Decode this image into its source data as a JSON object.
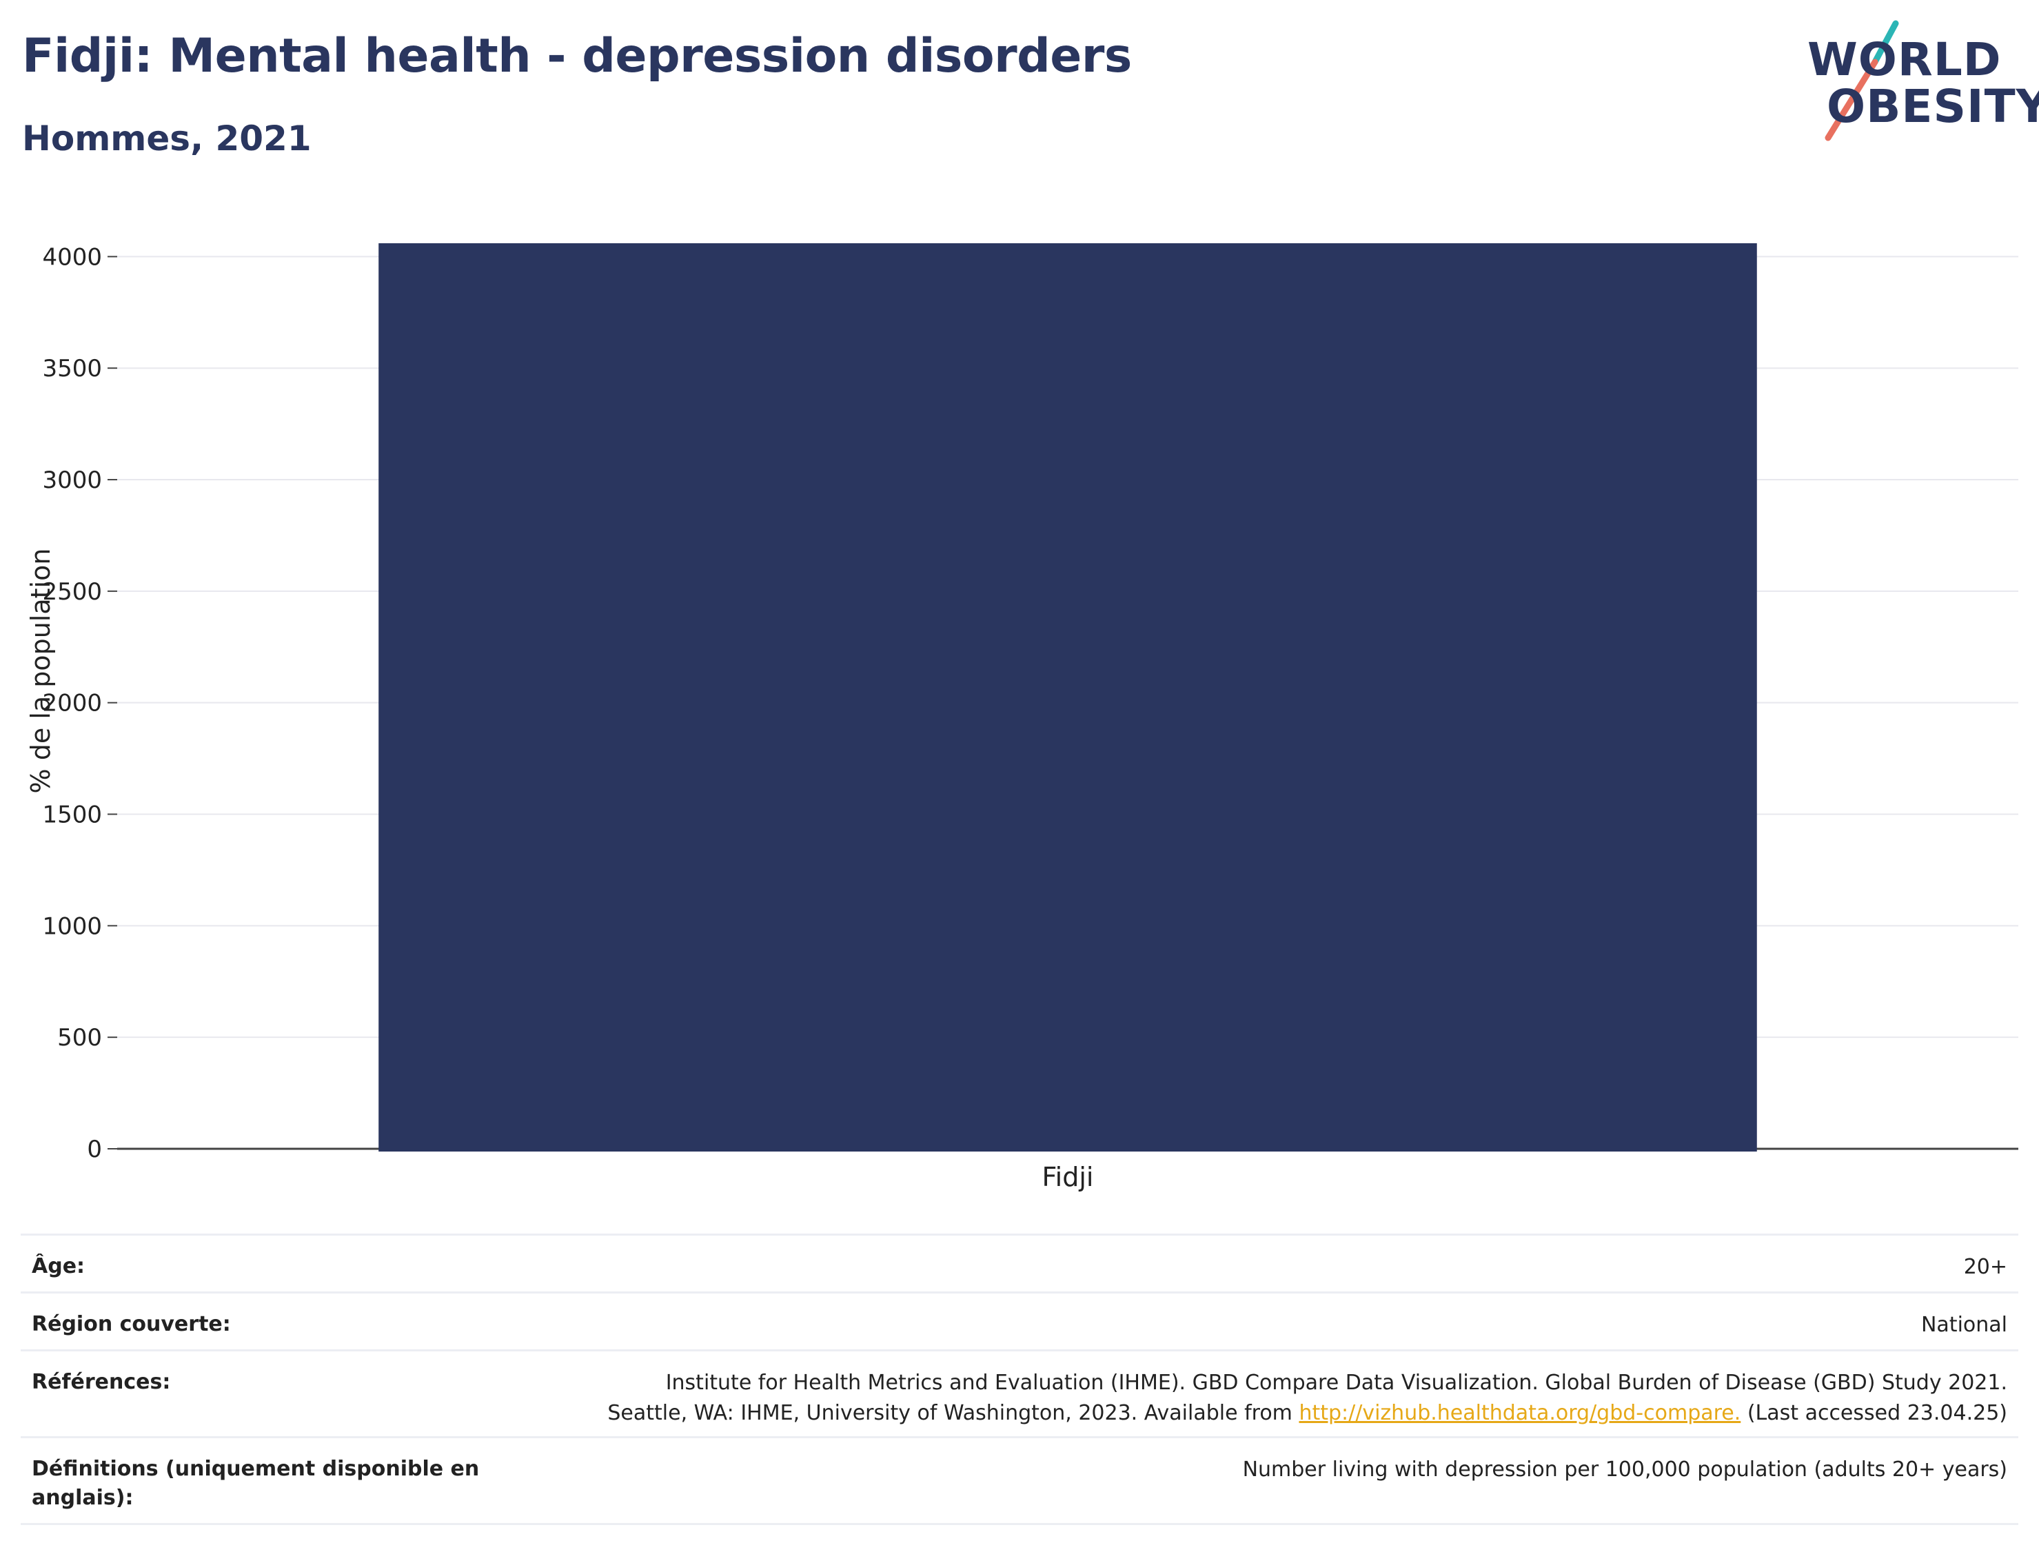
{
  "header": {
    "title": "Fidji: Mental health - depression disorders",
    "subtitle": "Hommes, 2021"
  },
  "logo": {
    "line1": "WORLD",
    "line2": "OBESITY",
    "accent_teal": "#2bb5b5",
    "accent_coral": "#e8705f"
  },
  "colors": {
    "bar": "#2a365f",
    "text": "#2a365f",
    "grid": "#e8e8ee"
  },
  "chart_data": {
    "type": "bar",
    "categories": [
      "Fidji"
    ],
    "values": [
      4060
    ],
    "ylabel": "% de la population",
    "xlabel": "",
    "ylim": [
      0,
      4100
    ],
    "yticks": [
      0,
      500,
      1000,
      1500,
      2000,
      2500,
      3000,
      3500,
      4000
    ],
    "grid": true
  },
  "info": {
    "age": {
      "label": "Âge:",
      "value": "20+"
    },
    "region": {
      "label": "Région couverte:",
      "value": "National"
    },
    "references": {
      "label": "Références:",
      "line1": "Institute for Health Metrics and Evaluation (IHME). GBD Compare Data Visualization. Global Burden of Disease (GBD) Study 2021.",
      "line2_pre": "Seattle, WA: IHME, University of Washington, 2023. Available from ",
      "link": "http://vizhub.healthdata.org/gbd-compare.",
      "line2_post": " (Last accessed 23.04.25)"
    },
    "definitions": {
      "label": "Définitions (uniquement disponible en anglais):",
      "value": "Number living with depression per 100,000 population (adults 20+ years)"
    }
  }
}
